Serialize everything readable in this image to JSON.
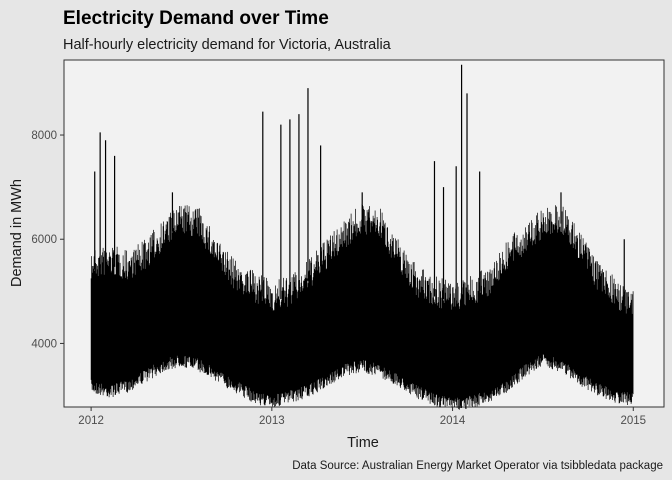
{
  "chart_data": {
    "type": "line",
    "title": "Electricity Demand over Time",
    "subtitle": "Half-hourly electricity demand for Victoria, Australia",
    "xlabel": "Time",
    "ylabel": "Demand in MWh",
    "caption": "Data Source: Australian Energy Market Operator via tsibbledata package",
    "xlim": [
      2011.85,
      2015.17
    ],
    "ylim": [
      2780,
      9440
    ],
    "x_ticks": [
      2012,
      2013,
      2014,
      2015
    ],
    "x_tick_labels": [
      "2012",
      "2013",
      "2014",
      "2015"
    ],
    "y_ticks": [
      4000,
      6000,
      8000
    ],
    "y_tick_labels": [
      "4000",
      "6000",
      "8000"
    ],
    "grid": false,
    "series": [
      {
        "color": "#000000",
        "x": [
          2012.0,
          2012.1,
          2012.2,
          2012.3,
          2012.4,
          2012.5,
          2012.6,
          2012.7,
          2012.8,
          2012.9,
          2013.0,
          2013.1,
          2013.2,
          2013.3,
          2013.4,
          2013.5,
          2013.6,
          2013.7,
          2013.8,
          2013.9,
          2014.0,
          2014.1,
          2014.2,
          2014.3,
          2014.4,
          2014.5,
          2014.6,
          2014.7,
          2014.8,
          2014.9,
          2015.0
        ],
        "low": [
          3300,
          3200,
          3300,
          3500,
          3700,
          3800,
          3700,
          3500,
          3300,
          3100,
          3000,
          3100,
          3200,
          3400,
          3600,
          3700,
          3600,
          3400,
          3200,
          3050,
          2950,
          3000,
          3100,
          3300,
          3600,
          3800,
          3700,
          3450,
          3250,
          3100,
          3050
        ],
        "high": [
          5800,
          5900,
          5800,
          6000,
          6400,
          6700,
          6600,
          6000,
          5600,
          5400,
          5200,
          5300,
          5600,
          6000,
          6400,
          6700,
          6600,
          6000,
          5500,
          5300,
          5200,
          5300,
          5500,
          6000,
          6300,
          6600,
          6700,
          6200,
          5600,
          5300,
          5000
        ],
        "spikes": [
          {
            "x": 2012.02,
            "y": 7300
          },
          {
            "x": 2012.05,
            "y": 8050
          },
          {
            "x": 2012.08,
            "y": 7900
          },
          {
            "x": 2012.13,
            "y": 7600
          },
          {
            "x": 2012.45,
            "y": 6900
          },
          {
            "x": 2012.95,
            "y": 8450
          },
          {
            "x": 2013.05,
            "y": 8200
          },
          {
            "x": 2013.1,
            "y": 8300
          },
          {
            "x": 2013.15,
            "y": 8400
          },
          {
            "x": 2013.2,
            "y": 8900
          },
          {
            "x": 2013.27,
            "y": 7800
          },
          {
            "x": 2013.5,
            "y": 6900
          },
          {
            "x": 2013.9,
            "y": 7500
          },
          {
            "x": 2013.95,
            "y": 7000
          },
          {
            "x": 2014.02,
            "y": 7400
          },
          {
            "x": 2014.05,
            "y": 9350
          },
          {
            "x": 2014.08,
            "y": 8800
          },
          {
            "x": 2014.15,
            "y": 7300
          },
          {
            "x": 2014.6,
            "y": 6900
          },
          {
            "x": 2014.95,
            "y": 6000
          }
        ]
      }
    ]
  }
}
